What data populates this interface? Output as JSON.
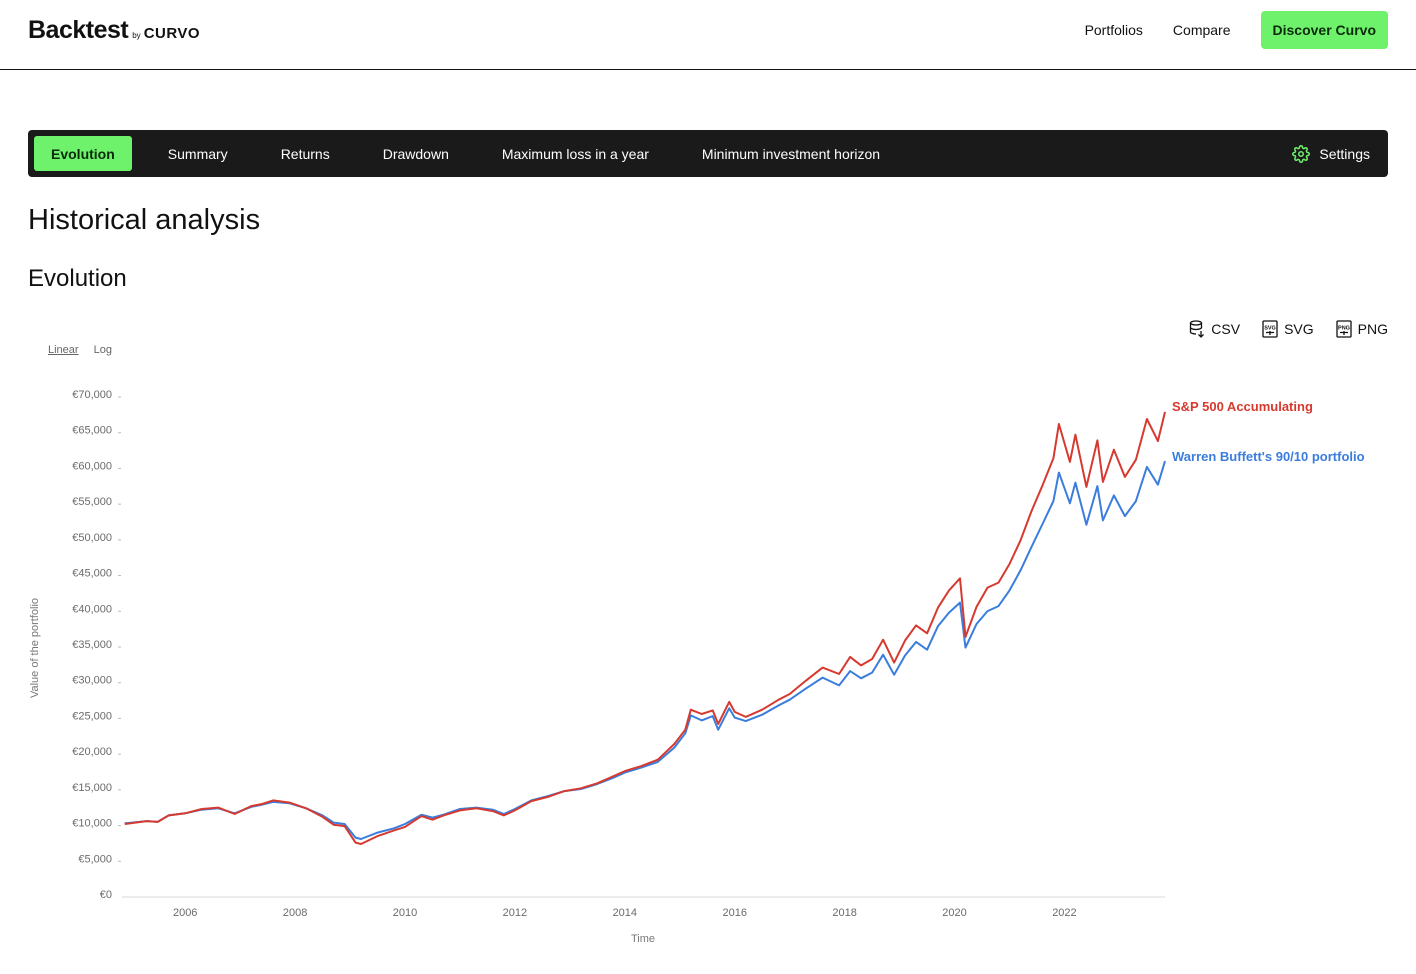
{
  "header": {
    "logo": "Backtest",
    "logo_by": "by",
    "logo_brand": "CURVO",
    "nav": [
      "Portfolios",
      "Compare"
    ],
    "cta": "Discover Curvo"
  },
  "tabs": [
    {
      "label": "Evolution",
      "active": true
    },
    {
      "label": "Summary",
      "active": false
    },
    {
      "label": "Returns",
      "active": false
    },
    {
      "label": "Drawdown",
      "active": false
    },
    {
      "label": "Maximum loss in a year",
      "active": false
    },
    {
      "label": "Minimum investment horizon",
      "active": false
    }
  ],
  "settings_label": "Settings",
  "page_title": "Historical analysis",
  "section_title": "Evolution",
  "scale_options": {
    "linear": "Linear",
    "log": "Log",
    "selected": "Linear"
  },
  "exports": [
    "CSV",
    "SVG",
    "PNG"
  ],
  "colors": {
    "accent": "#6ef26b",
    "sp500": "#d63a2f",
    "buffett": "#3b7ddd",
    "dark": "#1a1a1a"
  },
  "chart_data": {
    "type": "line",
    "xlabel": "Time",
    "ylabel": "Value of the portfolio",
    "ylim": [
      0,
      70000
    ],
    "xlim": [
      2004.85,
      2023.83
    ],
    "yticks": [
      "€0",
      "€5,000",
      "€10,000",
      "€15,000",
      "€20,000",
      "€25,000",
      "€30,000",
      "€35,000",
      "€40,000",
      "€45,000",
      "€50,000",
      "€55,000",
      "€60,000",
      "€65,000",
      "€70,000"
    ],
    "ytick_values": [
      0,
      5000,
      10000,
      15000,
      20000,
      25000,
      30000,
      35000,
      40000,
      45000,
      50000,
      55000,
      60000,
      65000,
      70000
    ],
    "xticks": [
      "2006",
      "2008",
      "2010",
      "2012",
      "2014",
      "2016",
      "2018",
      "2020",
      "2022"
    ],
    "xtick_values": [
      2006,
      2008,
      2010,
      2012,
      2014,
      2016,
      2018,
      2020,
      2022
    ],
    "grid": false,
    "series": [
      {
        "name": "S&P 500 Accumulating",
        "color": "#d63a2f",
        "points": [
          [
            2004.9,
            9800
          ],
          [
            2005.3,
            10200
          ],
          [
            2005.5,
            10100
          ],
          [
            2005.7,
            11000
          ],
          [
            2006.0,
            11300
          ],
          [
            2006.3,
            11900
          ],
          [
            2006.6,
            12100
          ],
          [
            2006.9,
            11200
          ],
          [
            2007.2,
            12300
          ],
          [
            2007.4,
            12600
          ],
          [
            2007.6,
            13100
          ],
          [
            2007.9,
            12800
          ],
          [
            2008.2,
            12000
          ],
          [
            2008.5,
            10800
          ],
          [
            2008.7,
            9700
          ],
          [
            2008.9,
            9500
          ],
          [
            2009.1,
            7200
          ],
          [
            2009.2,
            7000
          ],
          [
            2009.5,
            8100
          ],
          [
            2009.8,
            8900
          ],
          [
            2010.0,
            9400
          ],
          [
            2010.3,
            10900
          ],
          [
            2010.5,
            10400
          ],
          [
            2010.7,
            11000
          ],
          [
            2011.0,
            11700
          ],
          [
            2011.3,
            12000
          ],
          [
            2011.6,
            11600
          ],
          [
            2011.8,
            11000
          ],
          [
            2012.0,
            11700
          ],
          [
            2012.3,
            13000
          ],
          [
            2012.6,
            13600
          ],
          [
            2012.9,
            14400
          ],
          [
            2013.2,
            14800
          ],
          [
            2013.5,
            15500
          ],
          [
            2013.8,
            16500
          ],
          [
            2014.0,
            17200
          ],
          [
            2014.3,
            17900
          ],
          [
            2014.6,
            18800
          ],
          [
            2014.9,
            21000
          ],
          [
            2015.1,
            23000
          ],
          [
            2015.2,
            25800
          ],
          [
            2015.4,
            25200
          ],
          [
            2015.6,
            25700
          ],
          [
            2015.7,
            23800
          ],
          [
            2015.9,
            26900
          ],
          [
            2016.0,
            25500
          ],
          [
            2016.2,
            24800
          ],
          [
            2016.5,
            25800
          ],
          [
            2016.8,
            27200
          ],
          [
            2017.0,
            28000
          ],
          [
            2017.3,
            29900
          ],
          [
            2017.6,
            31700
          ],
          [
            2017.9,
            30800
          ],
          [
            2018.1,
            33200
          ],
          [
            2018.3,
            32000
          ],
          [
            2018.5,
            32900
          ],
          [
            2018.7,
            35600
          ],
          [
            2018.9,
            32400
          ],
          [
            2019.1,
            35500
          ],
          [
            2019.3,
            37600
          ],
          [
            2019.5,
            36500
          ],
          [
            2019.7,
            40100
          ],
          [
            2019.9,
            42500
          ],
          [
            2020.1,
            44200
          ],
          [
            2020.2,
            36000
          ],
          [
            2020.4,
            40200
          ],
          [
            2020.6,
            42900
          ],
          [
            2020.8,
            43600
          ],
          [
            2021.0,
            46200
          ],
          [
            2021.2,
            49500
          ],
          [
            2021.4,
            53600
          ],
          [
            2021.6,
            57200
          ],
          [
            2021.8,
            61000
          ],
          [
            2021.9,
            65800
          ],
          [
            2022.1,
            60500
          ],
          [
            2022.2,
            64300
          ],
          [
            2022.4,
            57000
          ],
          [
            2022.6,
            63500
          ],
          [
            2022.7,
            57700
          ],
          [
            2022.9,
            62200
          ],
          [
            2023.1,
            58400
          ],
          [
            2023.3,
            60800
          ],
          [
            2023.5,
            66500
          ],
          [
            2023.7,
            63400
          ],
          [
            2023.83,
            67500
          ]
        ]
      },
      {
        "name": "Warren Buffett's 90/10 portfolio",
        "color": "#3b7ddd",
        "points": [
          [
            2004.9,
            9900
          ],
          [
            2005.3,
            10200
          ],
          [
            2005.5,
            10100
          ],
          [
            2005.7,
            11000
          ],
          [
            2006.0,
            11300
          ],
          [
            2006.3,
            11800
          ],
          [
            2006.6,
            12000
          ],
          [
            2006.9,
            11300
          ],
          [
            2007.2,
            12200
          ],
          [
            2007.4,
            12500
          ],
          [
            2007.6,
            12900
          ],
          [
            2007.9,
            12700
          ],
          [
            2008.2,
            12000
          ],
          [
            2008.5,
            11000
          ],
          [
            2008.7,
            10000
          ],
          [
            2008.9,
            9800
          ],
          [
            2009.1,
            7900
          ],
          [
            2009.2,
            7700
          ],
          [
            2009.5,
            8600
          ],
          [
            2009.8,
            9200
          ],
          [
            2010.0,
            9800
          ],
          [
            2010.3,
            11100
          ],
          [
            2010.5,
            10700
          ],
          [
            2010.7,
            11100
          ],
          [
            2011.0,
            11900
          ],
          [
            2011.3,
            12100
          ],
          [
            2011.6,
            11800
          ],
          [
            2011.8,
            11200
          ],
          [
            2012.0,
            11900
          ],
          [
            2012.3,
            13100
          ],
          [
            2012.6,
            13700
          ],
          [
            2012.9,
            14400
          ],
          [
            2013.2,
            14700
          ],
          [
            2013.5,
            15400
          ],
          [
            2013.8,
            16300
          ],
          [
            2014.0,
            17000
          ],
          [
            2014.3,
            17700
          ],
          [
            2014.6,
            18500
          ],
          [
            2014.9,
            20500
          ],
          [
            2015.1,
            22500
          ],
          [
            2015.2,
            25000
          ],
          [
            2015.4,
            24300
          ],
          [
            2015.6,
            24900
          ],
          [
            2015.7,
            23000
          ],
          [
            2015.9,
            26000
          ],
          [
            2016.0,
            24700
          ],
          [
            2016.2,
            24200
          ],
          [
            2016.5,
            25100
          ],
          [
            2016.8,
            26400
          ],
          [
            2017.0,
            27200
          ],
          [
            2017.3,
            28800
          ],
          [
            2017.6,
            30300
          ],
          [
            2017.9,
            29200
          ],
          [
            2018.1,
            31200
          ],
          [
            2018.3,
            30200
          ],
          [
            2018.5,
            31000
          ],
          [
            2018.7,
            33500
          ],
          [
            2018.9,
            30700
          ],
          [
            2019.1,
            33400
          ],
          [
            2019.3,
            35300
          ],
          [
            2019.5,
            34200
          ],
          [
            2019.7,
            37500
          ],
          [
            2019.9,
            39400
          ],
          [
            2020.1,
            40800
          ],
          [
            2020.2,
            34500
          ],
          [
            2020.4,
            37800
          ],
          [
            2020.6,
            39600
          ],
          [
            2020.8,
            40300
          ],
          [
            2021.0,
            42500
          ],
          [
            2021.2,
            45300
          ],
          [
            2021.4,
            48600
          ],
          [
            2021.6,
            51800
          ],
          [
            2021.8,
            55000
          ],
          [
            2021.9,
            59000
          ],
          [
            2022.1,
            54700
          ],
          [
            2022.2,
            57600
          ],
          [
            2022.4,
            51700
          ],
          [
            2022.6,
            57100
          ],
          [
            2022.7,
            52300
          ],
          [
            2022.9,
            55800
          ],
          [
            2023.1,
            52900
          ],
          [
            2023.3,
            55000
          ],
          [
            2023.5,
            59800
          ],
          [
            2023.7,
            57300
          ],
          [
            2023.83,
            60600
          ]
        ]
      }
    ]
  }
}
